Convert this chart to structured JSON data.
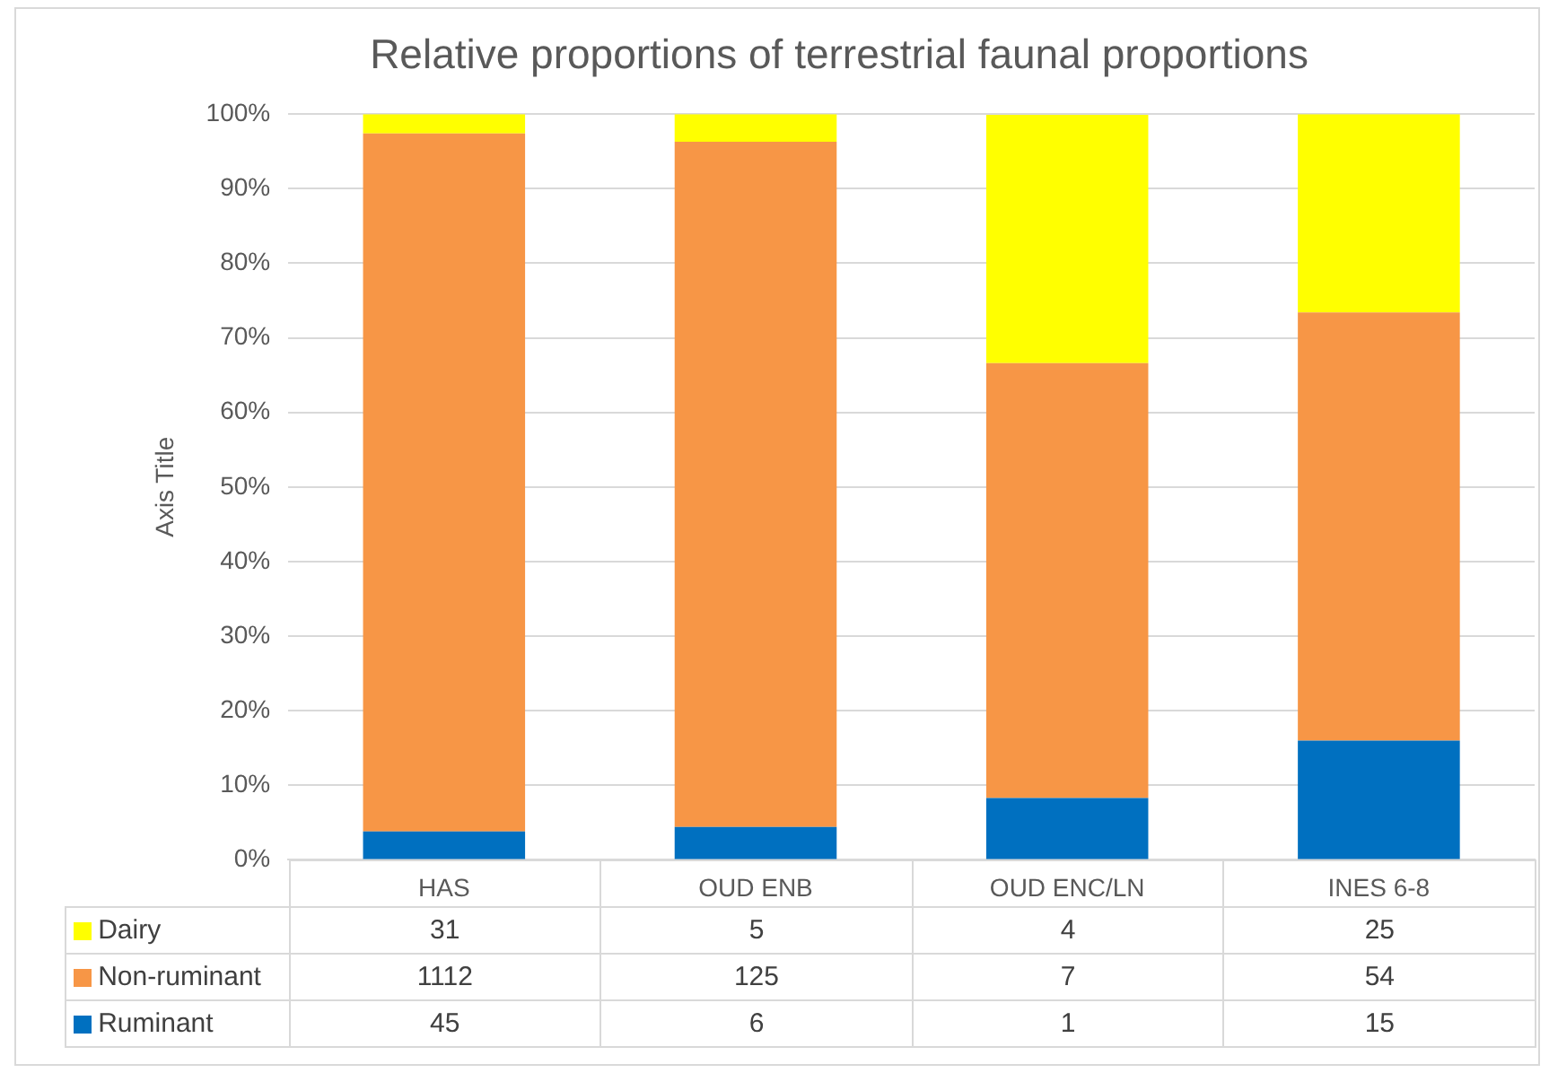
{
  "chart_data": {
    "type": "bar",
    "stacked": true,
    "title": "Relative proportions of terrestrial faunal proportions",
    "ylabel": "Axis Title",
    "categories": [
      "HAS",
      "OUD ENB",
      "OUD ENC/LN",
      "INES 6-8"
    ],
    "series": [
      {
        "name": "Ruminant",
        "color": "#0070c0",
        "values": [
          3.8,
          4.4,
          8.3,
          16.0
        ]
      },
      {
        "name": "Non-ruminant",
        "color": "#f79646",
        "values": [
          93.6,
          91.9,
          58.3,
          57.4
        ]
      },
      {
        "name": "Dairy",
        "color": "#ffff00",
        "values": [
          2.6,
          3.7,
          33.3,
          26.6
        ]
      }
    ],
    "annotations": [
      "31",
      "5",
      "4",
      "25",
      "1112",
      "125",
      "7",
      "54",
      "45",
      "6",
      "1",
      "15"
    ],
    "ylim": [
      0,
      100
    ],
    "yticks": [
      {
        "value": 0,
        "label": "0%"
      },
      {
        "value": 10,
        "label": "10%"
      },
      {
        "value": 20,
        "label": "20%"
      },
      {
        "value": 30,
        "label": "30%"
      },
      {
        "value": 40,
        "label": "40%"
      },
      {
        "value": 50,
        "label": "50%"
      },
      {
        "value": 60,
        "label": "60%"
      },
      {
        "value": 70,
        "label": "70%"
      },
      {
        "value": 80,
        "label": "80%"
      },
      {
        "value": 90,
        "label": "90%"
      },
      {
        "value": 100,
        "label": "100%"
      }
    ],
    "grid": "y",
    "legend": "bottom"
  }
}
